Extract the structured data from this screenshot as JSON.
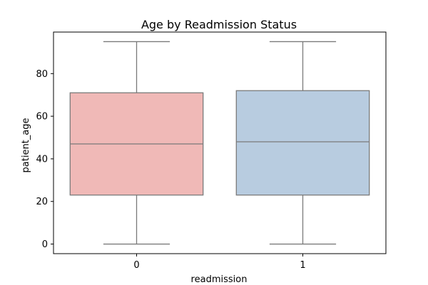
{
  "chart_data": {
    "type": "box",
    "title": "Age by Readmission Status",
    "xlabel": "readmission",
    "ylabel": "patient_age",
    "ylim": [
      -4.5,
      99.5
    ],
    "yticks": [
      0,
      20,
      40,
      60,
      80
    ],
    "grid": false,
    "categories": [
      "0",
      "1"
    ],
    "boxes": [
      {
        "category": "0",
        "whisker_low": 0,
        "q1": 23,
        "median": 47,
        "q3": 71,
        "whisker_high": 95,
        "color": "#f0b9b7"
      },
      {
        "category": "1",
        "whisker_low": 0,
        "q1": 23,
        "median": 48,
        "q3": 72,
        "whisker_high": 95,
        "color": "#b8cce0"
      }
    ],
    "line_color": "#7a7a7a"
  }
}
